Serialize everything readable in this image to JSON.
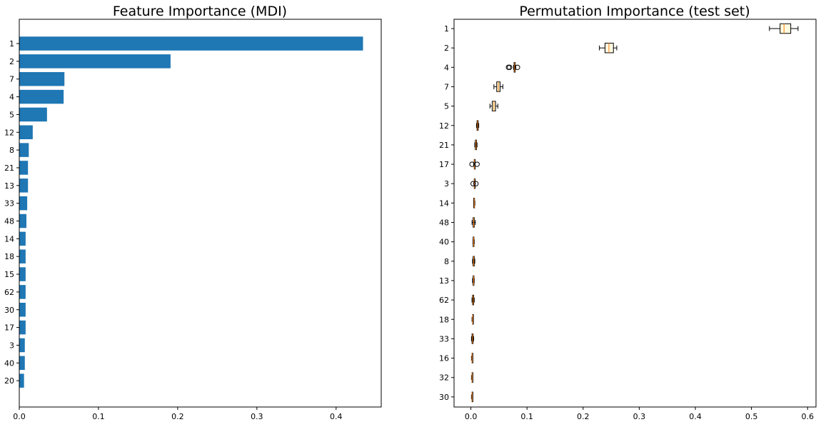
{
  "chart_data": [
    {
      "type": "bar",
      "orientation": "horizontal",
      "title": "Feature Importance (MDI)",
      "xlabel": "",
      "ylabel": "",
      "xlim": [
        0,
        0.457
      ],
      "xticks": [
        0.0,
        0.1,
        0.2,
        0.3,
        0.4
      ],
      "xtick_labels": [
        "0.0",
        "0.1",
        "0.2",
        "0.3",
        "0.4"
      ],
      "grid": false,
      "color": "#1f77b4",
      "categories": [
        "1",
        "2",
        "7",
        "4",
        "5",
        "12",
        "8",
        "21",
        "13",
        "33",
        "48",
        "14",
        "18",
        "15",
        "62",
        "30",
        "17",
        "3",
        "40",
        "20"
      ],
      "values": [
        0.434,
        0.191,
        0.057,
        0.056,
        0.035,
        0.017,
        0.012,
        0.011,
        0.011,
        0.01,
        0.009,
        0.008,
        0.008,
        0.008,
        0.008,
        0.008,
        0.008,
        0.007,
        0.007,
        0.006
      ]
    },
    {
      "type": "boxplot",
      "orientation": "horizontal",
      "title": "Permutation Importance (test set)",
      "xlabel": "",
      "ylabel": "",
      "xlim": [
        -0.03,
        0.615
      ],
      "xticks": [
        0.0,
        0.1,
        0.2,
        0.3,
        0.4,
        0.5,
        0.6
      ],
      "xtick_labels": [
        "0.0",
        "0.1",
        "0.2",
        "0.3",
        "0.4",
        "0.5",
        "0.6"
      ],
      "grid": false,
      "box_facecolor": "#fffae0",
      "median_color": "#ff7f0e",
      "categories": [
        "1",
        "2",
        "4",
        "7",
        "5",
        "12",
        "21",
        "17",
        "3",
        "14",
        "48",
        "40",
        "8",
        "13",
        "62",
        "18",
        "33",
        "16",
        "32",
        "30"
      ],
      "boxes": [
        {
          "whislo": 0.532,
          "q1": 0.551,
          "med": 0.558,
          "q3": 0.57,
          "whishi": 0.583,
          "fliers": []
        },
        {
          "whislo": 0.229,
          "q1": 0.239,
          "med": 0.246,
          "q3": 0.254,
          "whishi": 0.26,
          "fliers": []
        },
        {
          "whislo": 0.076,
          "q1": 0.077,
          "med": 0.078,
          "q3": 0.079,
          "whishi": 0.08,
          "fliers": [
            0.067,
            0.069,
            0.083
          ]
        },
        {
          "whislo": 0.041,
          "q1": 0.046,
          "med": 0.049,
          "q3": 0.052,
          "whishi": 0.057,
          "fliers": []
        },
        {
          "whislo": 0.034,
          "q1": 0.038,
          "med": 0.041,
          "q3": 0.044,
          "whishi": 0.048,
          "fliers": []
        },
        {
          "whislo": 0.01,
          "q1": 0.011,
          "med": 0.012,
          "q3": 0.013,
          "whishi": 0.014,
          "fliers": []
        },
        {
          "whislo": 0.007,
          "q1": 0.008,
          "med": 0.009,
          "q3": 0.01,
          "whishi": 0.011,
          "fliers": []
        },
        {
          "whislo": 0.005,
          "q1": 0.006,
          "med": 0.006,
          "q3": 0.007,
          "whishi": 0.007,
          "fliers": [
            0.002,
            0.011
          ]
        },
        {
          "whislo": 0.006,
          "q1": 0.006,
          "med": 0.006,
          "q3": 0.007,
          "whishi": 0.007,
          "fliers": [
            0.004,
            0.009
          ]
        },
        {
          "whislo": 0.005,
          "q1": 0.005,
          "med": 0.006,
          "q3": 0.006,
          "whishi": 0.007,
          "fliers": []
        },
        {
          "whislo": 0.002,
          "q1": 0.004,
          "med": 0.005,
          "q3": 0.006,
          "whishi": 0.008,
          "fliers": []
        },
        {
          "whislo": 0.004,
          "q1": 0.004,
          "med": 0.005,
          "q3": 0.005,
          "whishi": 0.006,
          "fliers": []
        },
        {
          "whislo": 0.003,
          "q1": 0.004,
          "med": 0.005,
          "q3": 0.006,
          "whishi": 0.007,
          "fliers": []
        },
        {
          "whislo": 0.003,
          "q1": 0.004,
          "med": 0.005,
          "q3": 0.005,
          "whishi": 0.006,
          "fliers": []
        },
        {
          "whislo": 0.002,
          "q1": 0.003,
          "med": 0.004,
          "q3": 0.005,
          "whishi": 0.006,
          "fliers": []
        },
        {
          "whislo": 0.002,
          "q1": 0.003,
          "med": 0.003,
          "q3": 0.004,
          "whishi": 0.004,
          "fliers": []
        },
        {
          "whislo": 0.001,
          "q1": 0.002,
          "med": 0.003,
          "q3": 0.004,
          "whishi": 0.005,
          "fliers": []
        },
        {
          "whislo": 0.001,
          "q1": 0.002,
          "med": 0.002,
          "q3": 0.003,
          "whishi": 0.003,
          "fliers": []
        },
        {
          "whislo": 0.001,
          "q1": 0.002,
          "med": 0.002,
          "q3": 0.002,
          "whishi": 0.003,
          "fliers": []
        },
        {
          "whislo": 0.001,
          "q1": 0.002,
          "med": 0.002,
          "q3": 0.003,
          "whishi": 0.003,
          "fliers": []
        }
      ]
    }
  ]
}
